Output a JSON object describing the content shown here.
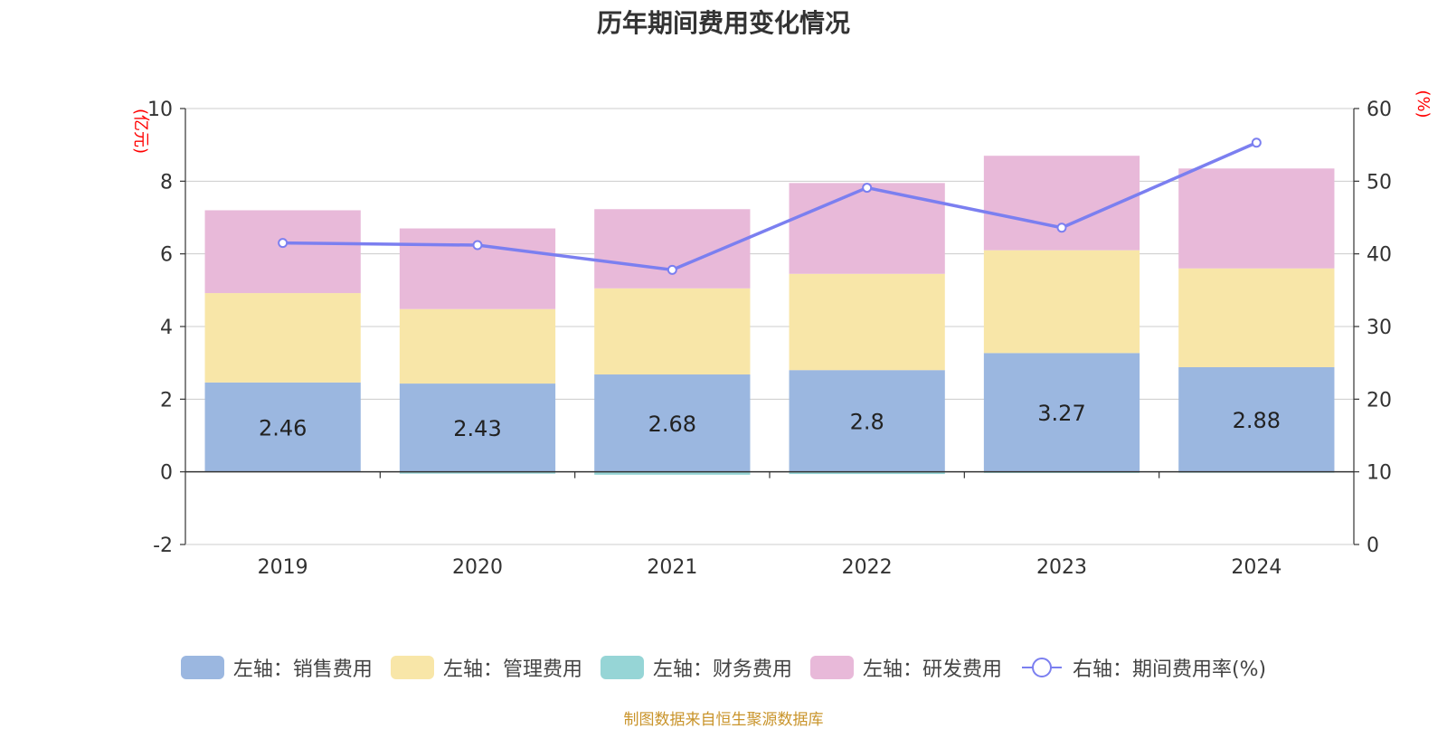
{
  "chart_data": {
    "type": "bar",
    "title": "历年期间费用变化情况",
    "categories": [
      "2019",
      "2020",
      "2021",
      "2022",
      "2023",
      "2024"
    ],
    "series": [
      {
        "name": "左轴：销售费用",
        "axis": "left",
        "kind": "bar",
        "color": "#9bb7e0",
        "values": [
          2.46,
          2.43,
          2.68,
          2.8,
          3.27,
          2.88
        ],
        "labels_shown": true
      },
      {
        "name": "左轴：管理费用",
        "axis": "left",
        "kind": "bar",
        "color": "#f8e6a8",
        "values": [
          2.46,
          2.05,
          2.37,
          2.65,
          2.83,
          2.72
        ],
        "labels_shown": false
      },
      {
        "name": "左轴：财务费用",
        "axis": "left",
        "kind": "bar",
        "color": "#96d5d6",
        "values": [
          0.0,
          -0.05,
          -0.08,
          -0.06,
          -0.03,
          -0.02
        ],
        "labels_shown": false
      },
      {
        "name": "左轴：研发费用",
        "axis": "left",
        "kind": "bar",
        "color": "#e8b9d9",
        "values": [
          2.28,
          2.22,
          2.18,
          2.5,
          2.6,
          2.75
        ],
        "labels_shown": false
      },
      {
        "name": "右轴：期间费用率(%)",
        "axis": "right",
        "kind": "line",
        "color": "#7b7ff0",
        "values": [
          41.5,
          41.2,
          37.8,
          49.1,
          43.6,
          55.3
        ]
      }
    ],
    "left_axis": {
      "unit": "(亿元)",
      "ylim": [
        -2,
        10
      ],
      "ticks": [
        -2,
        0,
        2,
        4,
        6,
        8,
        10
      ]
    },
    "right_axis": {
      "unit": "(%)",
      "ylim": [
        0,
        60
      ],
      "ticks": [
        0,
        10,
        20,
        30,
        40,
        50,
        60
      ]
    },
    "grid": true,
    "legend_position": "bottom"
  },
  "source_note": "制图数据来自恒生聚源数据库"
}
